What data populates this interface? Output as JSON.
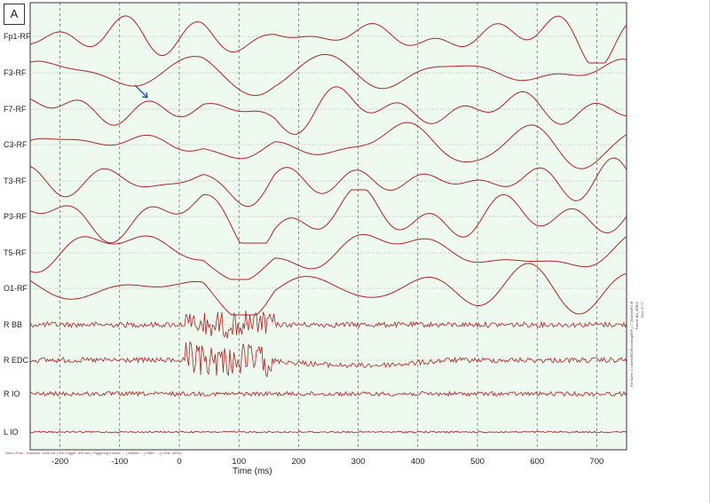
{
  "panel_label": "A",
  "footer_text": "Neuro Prsn - Duration: 1000 ms | Pre-Trigger: 300 ms | Triggering Events: ... | Artifact ... | Filter: ... (1.0Hz, 30Hz)",
  "side_info": [
    "File Name: C:\\Users\\EEG\\Recording\\ERP_1.7.20\\Jerks\\RS.rtf",
    "Patient: NN_JERKS",
    "Time: 07:17"
  ],
  "colors": {
    "plot_bg": "#eefaef",
    "trace": "#b22222",
    "grid": "#444444",
    "baseline": "#8a8a8a",
    "arrow": "#1f4f9a"
  },
  "arrow_icon": "pointer-arrow-icon",
  "chart_data": {
    "type": "line",
    "title": "",
    "xlabel": "Time (ms)",
    "ylabel": "",
    "xlim": [
      -250,
      750
    ],
    "xticks": [
      -200,
      -100,
      0,
      100,
      200,
      300,
      400,
      500,
      600,
      700
    ],
    "grid": true,
    "channels": [
      {
        "name": "Fp1-RF",
        "type": "eeg"
      },
      {
        "name": "F3-RF",
        "type": "eeg"
      },
      {
        "name": "F7-RF",
        "type": "eeg"
      },
      {
        "name": "C3-RF",
        "type": "eeg"
      },
      {
        "name": "T3-RF",
        "type": "eeg"
      },
      {
        "name": "P3-RF",
        "type": "eeg"
      },
      {
        "name": "T5-RF",
        "type": "eeg"
      },
      {
        "name": "O1-RF",
        "type": "eeg"
      },
      {
        "name": "R BB",
        "type": "emg"
      },
      {
        "name": "R EDC",
        "type": "emg"
      },
      {
        "name": "R IO",
        "type": "emg"
      },
      {
        "name": "L IO",
        "type": "emg"
      }
    ]
  }
}
